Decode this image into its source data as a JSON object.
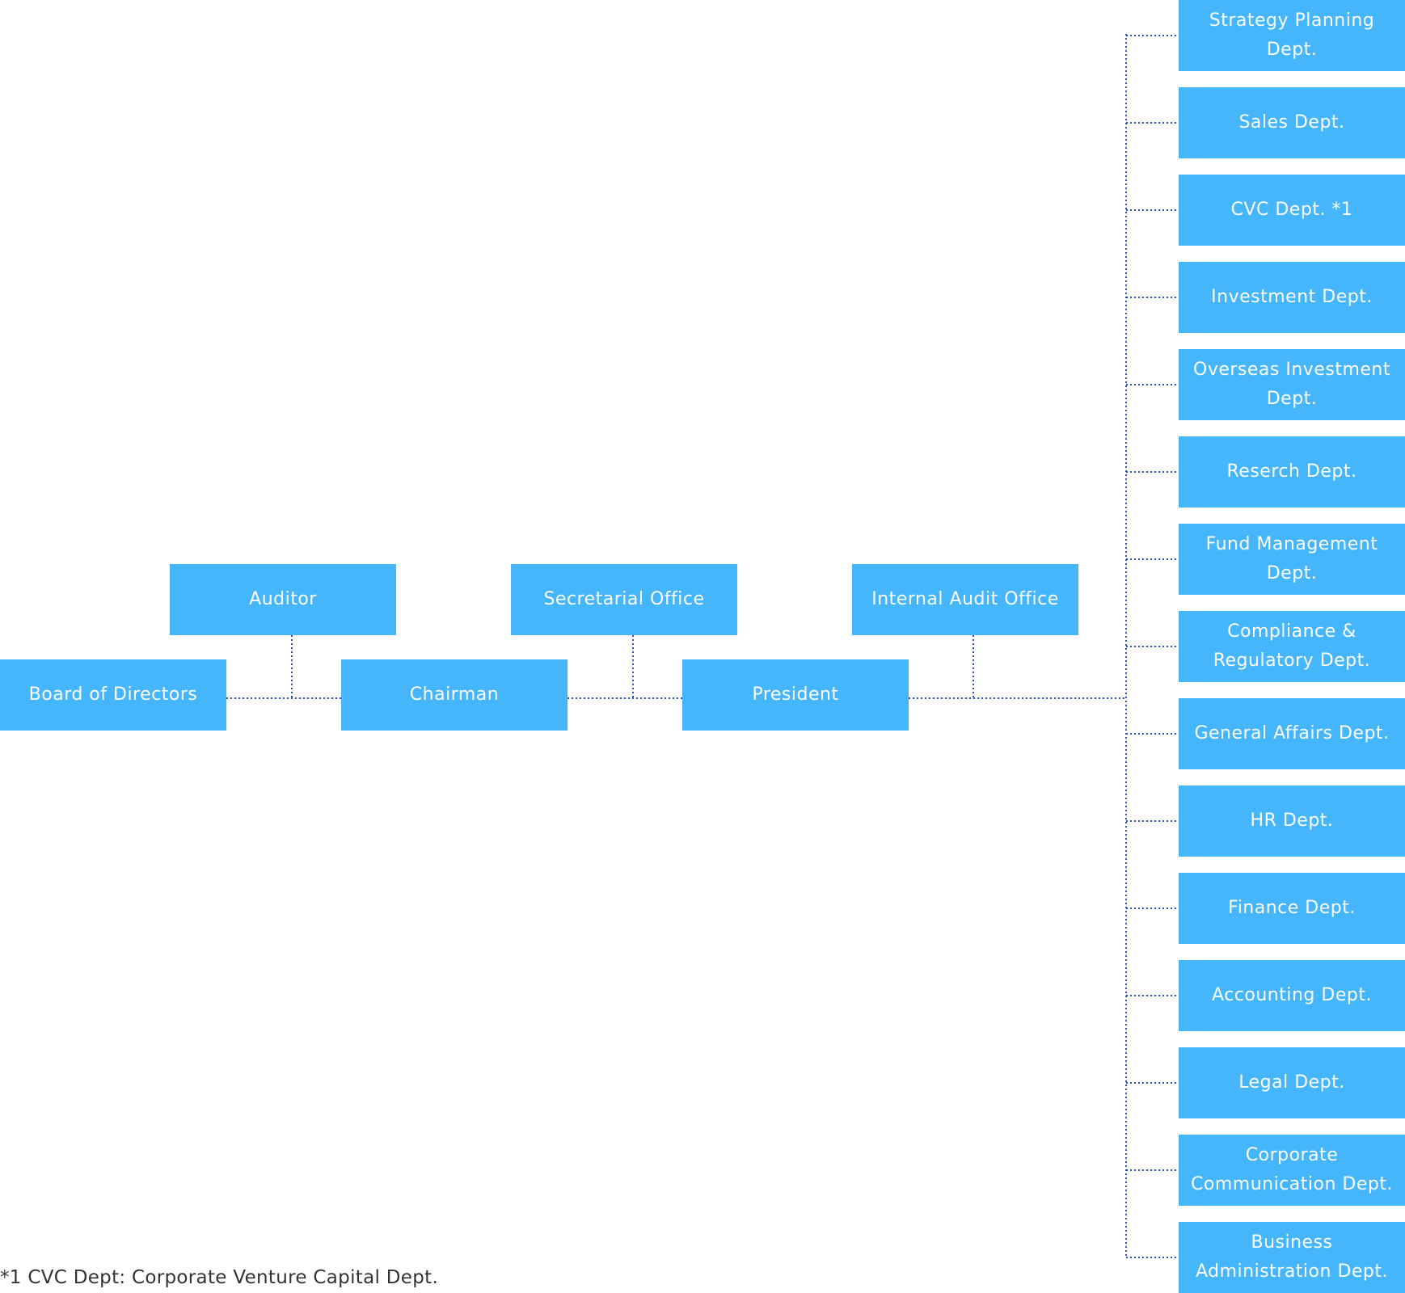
{
  "boxes": {
    "board": "Board of Directors",
    "auditor": "Auditor",
    "chairman": "Chairman",
    "secretarial": "Secretarial Office",
    "president": "President",
    "internal_audit": "Internal Audit Office"
  },
  "departments": [
    "Strategy Planning Dept.",
    "Sales Dept.",
    "CVC Dept. *1",
    "Investment Dept.",
    "Overseas Investment Dept.",
    "Reserch Dept.",
    "Fund Management Dept.",
    "Compliance & Regulatory Dept.",
    "General Affairs Dept.",
    "HR Dept.",
    "Finance Dept.",
    "Accounting Dept.",
    "Legal Dept.",
    "Corporate Communication Dept.",
    "Business Administration Dept."
  ],
  "footnote": "*1 CVC Dept: Corporate Venture Capital Dept.",
  "colors": {
    "box": "#46b6fc",
    "connector": "#2e4fb5"
  }
}
